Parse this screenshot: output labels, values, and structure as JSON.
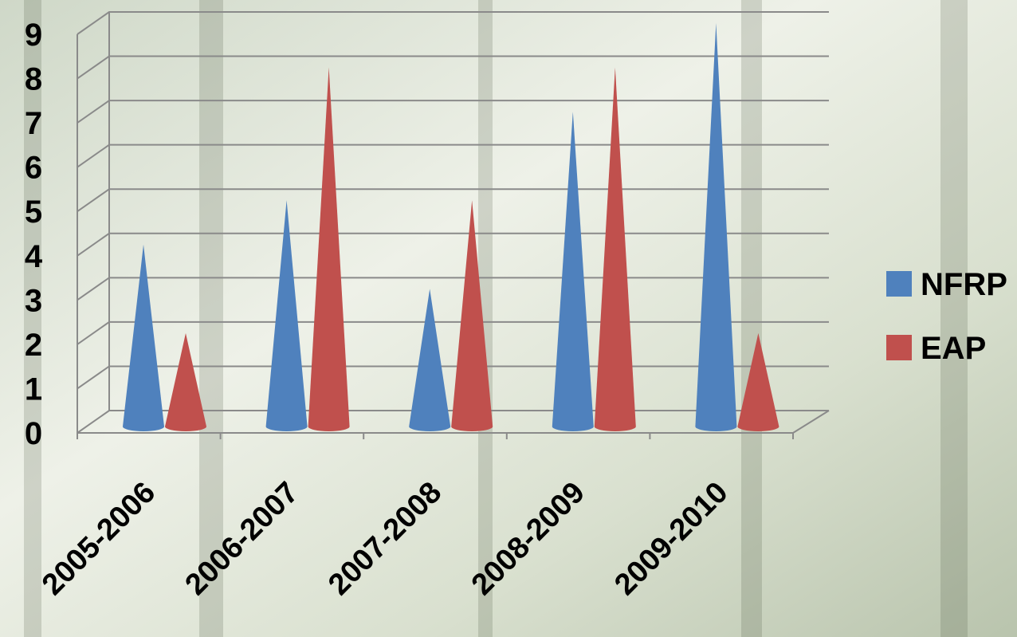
{
  "chart_data": {
    "type": "cone3d",
    "categories": [
      "2005-2006",
      "2006-2007",
      "2007-2008",
      "2008-2009",
      "2009-2010"
    ],
    "series": [
      {
        "name": "NFRP",
        "color": "#4f81bd",
        "values": [
          4,
          5,
          3,
          7,
          9
        ]
      },
      {
        "name": "EAP",
        "color": "#c0504d",
        "values": [
          2,
          8,
          5,
          8,
          2
        ]
      }
    ],
    "ylim": [
      0,
      9
    ],
    "yticks": [
      0,
      1,
      2,
      3,
      4,
      5,
      6,
      7,
      8,
      9
    ],
    "grid": true,
    "legend": "right"
  }
}
